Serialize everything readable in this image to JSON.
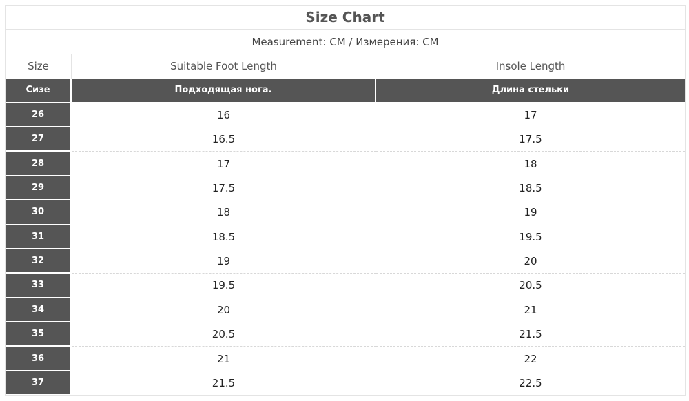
{
  "title": "Size Chart",
  "measurement": "Measurement: CM / Измерения: CM",
  "headers_en": [
    "Size",
    "Suitable Foot Length",
    "Insole Length"
  ],
  "headers_ru": [
    "Сизе",
    "Подходящая нога.",
    "Длина стельки"
  ],
  "rows": [
    [
      "26",
      "16",
      "17"
    ],
    [
      "27",
      "16.5",
      "17.5"
    ],
    [
      "28",
      "17",
      "18"
    ],
    [
      "29",
      "17.5",
      "18.5"
    ],
    [
      "30",
      "18",
      "19"
    ],
    [
      "31",
      "18.5",
      "19.5"
    ],
    [
      "32",
      "19",
      "20"
    ],
    [
      "33",
      "19.5",
      "20.5"
    ],
    [
      "34",
      "20",
      "21"
    ],
    [
      "35",
      "20.5",
      "21.5"
    ],
    [
      "36",
      "21",
      "22"
    ],
    [
      "37",
      "21.5",
      "22.5"
    ]
  ],
  "colors": {
    "header_dark": "#555555"
  }
}
